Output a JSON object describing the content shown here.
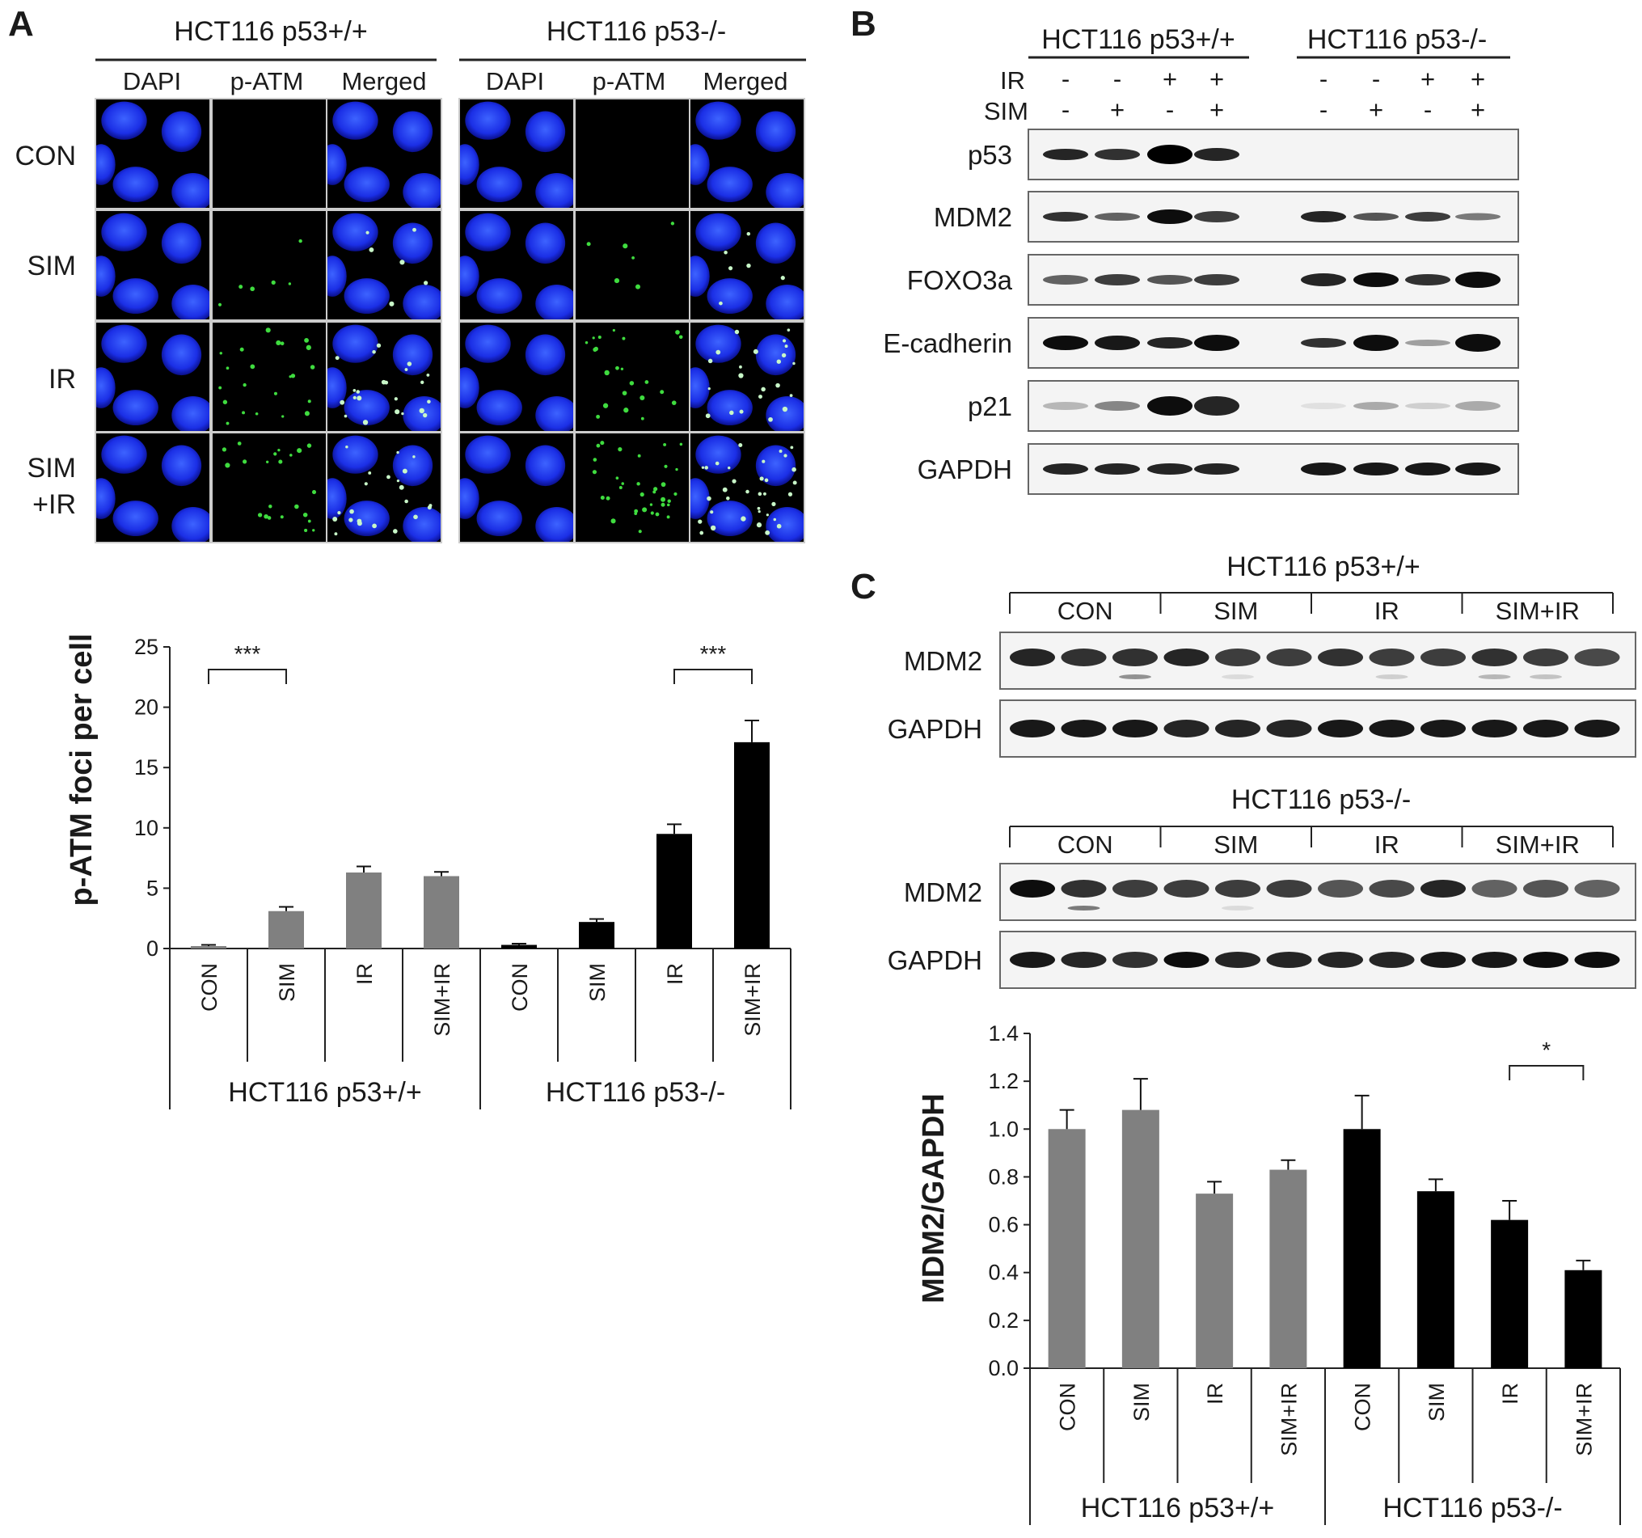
{
  "panelA": {
    "letter": "A",
    "groups": [
      "HCT116 p53+/+",
      "HCT116 p53-/-"
    ],
    "channels": [
      "DAPI",
      "p-ATM",
      "Merged"
    ],
    "rows": [
      "CON",
      "SIM",
      "IR",
      "SIM",
      "+IR"
    ]
  },
  "panelB": {
    "letter": "B",
    "groups": [
      "HCT116 p53+/+",
      "HCT116 p53-/-"
    ],
    "treatments": [
      {
        "name": "IR",
        "values": [
          "-",
          "-",
          "+",
          "+",
          "-",
          "-",
          "+",
          "+"
        ]
      },
      {
        "name": "SIM",
        "values": [
          "-",
          "+",
          "-",
          "+",
          "-",
          "+",
          "-",
          "+"
        ]
      }
    ],
    "blots": [
      "p53",
      "MDM2",
      "FOXO3a",
      "E-cadherin",
      "p21",
      "GAPDH"
    ]
  },
  "panelC": {
    "letter": "C",
    "sections": [
      {
        "title": "HCT116 p53+/+",
        "groups": [
          "CON",
          "SIM",
          "IR",
          "SIM+IR"
        ],
        "blots": [
          "MDM2",
          "GAPDH"
        ]
      },
      {
        "title": "HCT116 p53-/-",
        "groups": [
          "CON",
          "SIM",
          "IR",
          "SIM+IR"
        ],
        "blots": [
          "MDM2",
          "GAPDH"
        ]
      }
    ]
  },
  "chart_data": [
    {
      "type": "bar",
      "ylabel": "p-ATM foci per cell",
      "ylim": [
        0,
        25
      ],
      "yticks": [
        "0",
        "5",
        "10",
        "15",
        "20",
        "25"
      ],
      "categories": [
        "CON",
        "SIM",
        "IR",
        "SIM+IR",
        "CON",
        "SIM",
        "IR",
        "SIM+IR"
      ],
      "groups": [
        "HCT116 p53+/+",
        "HCT116 p53-/-"
      ],
      "values": [
        0.2,
        3.1,
        6.3,
        6.0,
        0.3,
        2.2,
        9.5,
        17.1
      ],
      "errors": [
        0.1,
        0.35,
        0.5,
        0.35,
        0.1,
        0.25,
        0.8,
        1.8
      ],
      "bar_colors": [
        "#808080",
        "#808080",
        "#808080",
        "#808080",
        "#000000",
        "#000000",
        "#000000",
        "#000000"
      ],
      "significance": [
        {
          "from": 0,
          "to": 1,
          "label": "***"
        },
        {
          "from": 6,
          "to": 7,
          "label": "***"
        }
      ]
    },
    {
      "type": "bar",
      "ylabel": "MDM2/GAPDH",
      "ylim": [
        0,
        1.4
      ],
      "yticks": [
        "0.0",
        "0.2",
        "0.4",
        "0.6",
        "0.8",
        "1.0",
        "1.2",
        "1.4"
      ],
      "categories": [
        "CON",
        "SIM",
        "IR",
        "SIM+IR",
        "CON",
        "SIM",
        "IR",
        "SIM+IR"
      ],
      "groups": [
        "HCT116 p53+/+",
        "HCT116 p53-/-"
      ],
      "values": [
        1.0,
        1.08,
        0.73,
        0.83,
        1.0,
        0.74,
        0.62,
        0.41
      ],
      "errors": [
        0.08,
        0.13,
        0.05,
        0.04,
        0.14,
        0.05,
        0.08,
        0.04
      ],
      "bar_colors": [
        "#808080",
        "#808080",
        "#808080",
        "#808080",
        "#000000",
        "#000000",
        "#000000",
        "#000000"
      ],
      "significance": [
        {
          "from": 6,
          "to": 7,
          "label": "*"
        }
      ]
    }
  ]
}
